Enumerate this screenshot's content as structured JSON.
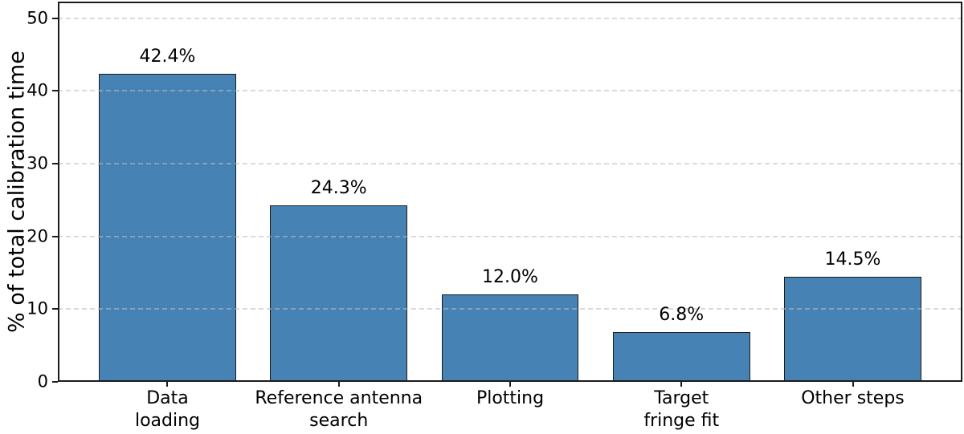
{
  "chart_data": {
    "type": "bar",
    "title": "",
    "xlabel": "",
    "ylabel": "% of total calibration time",
    "categories": [
      "Data\nloading",
      "Reference antenna\nsearch",
      "Plotting",
      "Target\nfringe fit",
      "Other steps"
    ],
    "values": [
      42.4,
      24.3,
      12.0,
      6.8,
      14.5
    ],
    "bar_labels": [
      "42.4%",
      "24.3%",
      "12.0%",
      "6.8%",
      "14.5%"
    ],
    "yticks": [
      0,
      10,
      20,
      30,
      40,
      50
    ],
    "ytick_labels": [
      "0",
      "10",
      "20",
      "30",
      "40",
      "50"
    ],
    "ylim": [
      0,
      52.3
    ],
    "x_pad": 0.64,
    "bar_width_frac": 0.8,
    "grid": "horizontal-dashed",
    "legend": "none",
    "colors": {
      "bar_fill": "#4682b4",
      "bar_edge": "#1b1b1b",
      "grid": "#bbbbbb",
      "spine": "#1c1c1c",
      "text": "#000000",
      "background": "#ffffff"
    }
  }
}
